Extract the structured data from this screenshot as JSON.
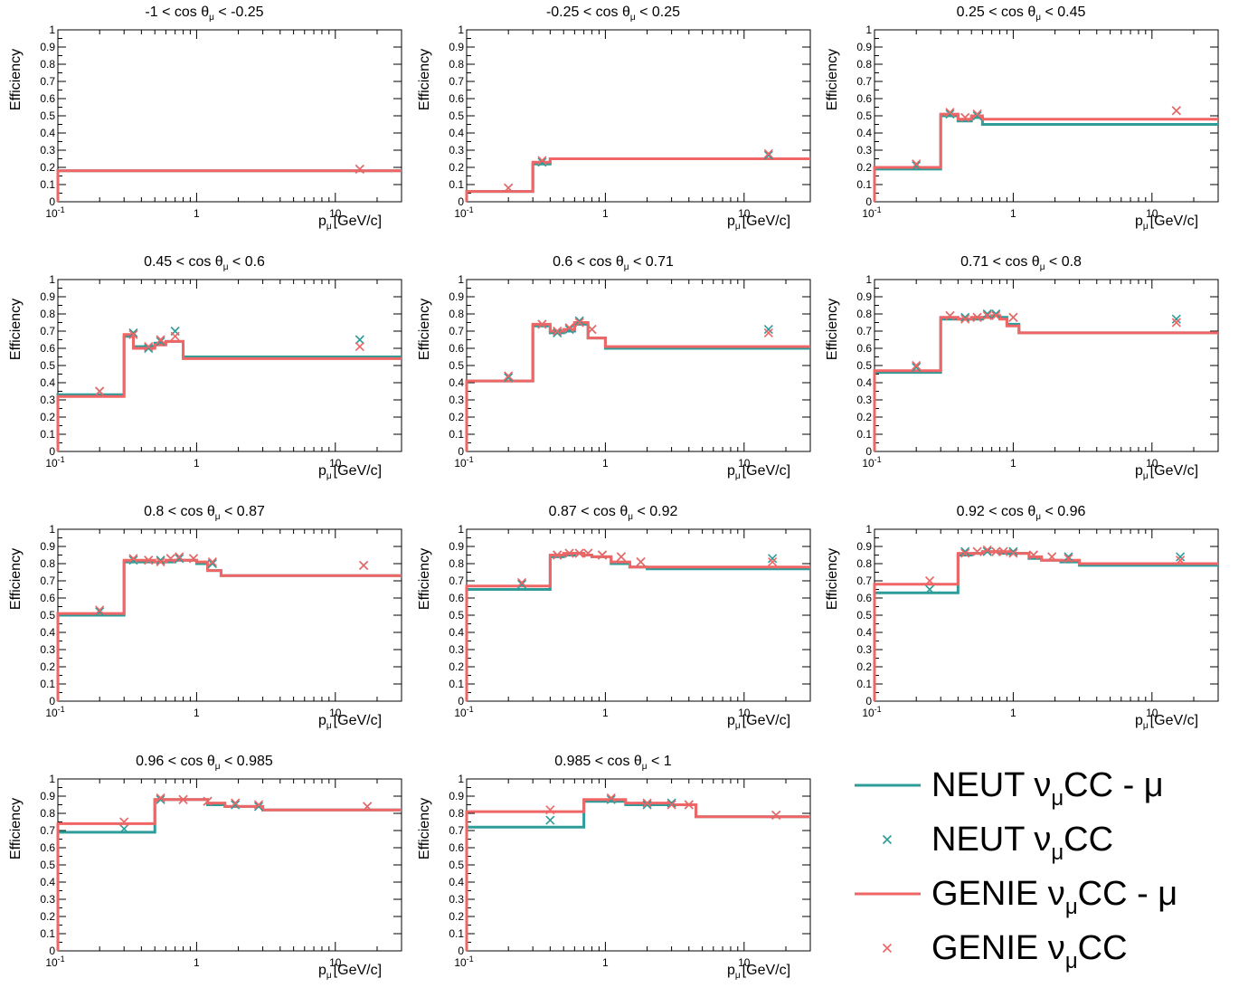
{
  "colors": {
    "neut": "#2e9c99",
    "genie": "#f06565"
  },
  "axis": {
    "ylabel": "Efficiency",
    "xlabel_main": "p",
    "xlabel_sub": "μ",
    "xlabel_unit": "[GeV/c]",
    "ytick_labels": [
      "0",
      "0.1",
      "0.2",
      "0.3",
      "0.4",
      "0.5",
      "0.6",
      "0.7",
      "0.8",
      "0.9",
      "1"
    ],
    "xtick_labels": [
      "10",
      "1",
      "10"
    ],
    "xtick_exp": "-1"
  },
  "legend": {
    "items": [
      {
        "main": "NEUT ν",
        "sub": "μ",
        "rest": "CC - μ",
        "style": "line",
        "color_key": "neut"
      },
      {
        "main": "NEUT ν",
        "sub": "μ",
        "rest": "CC",
        "style": "marker",
        "color_key": "neut"
      },
      {
        "main": "GENIE ν",
        "sub": "μ",
        "rest": "CC - μ",
        "style": "line",
        "color_key": "genie"
      },
      {
        "main": "GENIE ν",
        "sub": "μ",
        "rest": "CC",
        "style": "marker",
        "color_key": "genie"
      }
    ]
  },
  "chart_data": [
    {
      "type": "line",
      "title_pre": "-1 < cos θ",
      "title_sub": "μ",
      "title_post": " < -0.25",
      "xscale": "log",
      "xlim": [
        0.1,
        30
      ],
      "ylim": [
        0,
        1
      ],
      "edges": [
        0.1,
        30
      ],
      "neut_line": [
        0.18
      ],
      "genie_line": [
        0.18
      ],
      "neut_pts": [
        [
          15,
          0.19
        ]
      ],
      "genie_pts": [
        [
          15,
          0.19
        ]
      ]
    },
    {
      "type": "line",
      "title_pre": "-0.25 < cos θ",
      "title_sub": "μ",
      "title_post": " < 0.25",
      "xscale": "log",
      "xlim": [
        0.1,
        30
      ],
      "ylim": [
        0,
        1
      ],
      "edges": [
        0.1,
        0.3,
        0.4,
        30
      ],
      "neut_line": [
        0.06,
        0.22,
        0.25
      ],
      "genie_line": [
        0.06,
        0.23,
        0.25
      ],
      "neut_pts": [
        [
          0.2,
          0.08
        ],
        [
          0.35,
          0.23
        ],
        [
          15,
          0.27
        ]
      ],
      "genie_pts": [
        [
          0.2,
          0.08
        ],
        [
          0.35,
          0.24
        ],
        [
          15,
          0.28
        ]
      ]
    },
    {
      "type": "line",
      "title_pre": "0.25 < cos θ",
      "title_sub": "μ",
      "title_post": " < 0.45",
      "xscale": "log",
      "xlim": [
        0.1,
        30
      ],
      "ylim": [
        0,
        1
      ],
      "edges": [
        0.1,
        0.3,
        0.4,
        0.5,
        0.6,
        30
      ],
      "neut_line": [
        0.19,
        0.5,
        0.47,
        0.49,
        0.45
      ],
      "genie_line": [
        0.2,
        0.51,
        0.48,
        0.5,
        0.48
      ],
      "neut_pts": [
        [
          0.2,
          0.21
        ],
        [
          0.35,
          0.51
        ],
        [
          0.45,
          0.49
        ],
        [
          0.55,
          0.5
        ],
        [
          15,
          0.53
        ]
      ],
      "genie_pts": [
        [
          0.2,
          0.22
        ],
        [
          0.35,
          0.52
        ],
        [
          0.45,
          0.49
        ],
        [
          0.55,
          0.51
        ],
        [
          15,
          0.53
        ]
      ]
    },
    {
      "type": "line",
      "title_pre": "0.45 < cos θ",
      "title_sub": "μ",
      "title_post": " < 0.6",
      "xscale": "log",
      "xlim": [
        0.1,
        30
      ],
      "ylim": [
        0,
        1
      ],
      "edges": [
        0.1,
        0.3,
        0.35,
        0.45,
        0.5,
        0.6,
        0.8,
        30
      ],
      "neut_line": [
        0.33,
        0.67,
        0.61,
        0.61,
        0.63,
        0.64,
        0.55
      ],
      "genie_line": [
        0.32,
        0.68,
        0.6,
        0.6,
        0.62,
        0.64,
        0.54
      ],
      "neut_pts": [
        [
          0.2,
          0.35
        ],
        [
          0.35,
          0.69
        ],
        [
          0.45,
          0.6
        ],
        [
          0.55,
          0.64
        ],
        [
          0.7,
          0.7
        ],
        [
          15,
          0.65
        ]
      ],
      "genie_pts": [
        [
          0.2,
          0.35
        ],
        [
          0.35,
          0.68
        ],
        [
          0.45,
          0.61
        ],
        [
          0.55,
          0.65
        ],
        [
          0.7,
          0.67
        ],
        [
          15,
          0.61
        ]
      ]
    },
    {
      "type": "line",
      "title_pre": "0.6 < cos θ",
      "title_sub": "μ",
      "title_post": " < 0.71",
      "xscale": "log",
      "xlim": [
        0.1,
        30
      ],
      "ylim": [
        0,
        1
      ],
      "edges": [
        0.1,
        0.3,
        0.4,
        0.5,
        0.6,
        0.75,
        1,
        30
      ],
      "neut_line": [
        0.41,
        0.73,
        0.69,
        0.7,
        0.74,
        0.66,
        0.6
      ],
      "genie_line": [
        0.41,
        0.74,
        0.7,
        0.71,
        0.75,
        0.66,
        0.61
      ],
      "neut_pts": [
        [
          0.2,
          0.43
        ],
        [
          0.35,
          0.74
        ],
        [
          0.45,
          0.69
        ],
        [
          0.55,
          0.71
        ],
        [
          0.65,
          0.76
        ],
        [
          0.8,
          0.71
        ],
        [
          15,
          0.71
        ]
      ],
      "genie_pts": [
        [
          0.2,
          0.44
        ],
        [
          0.35,
          0.74
        ],
        [
          0.45,
          0.7
        ],
        [
          0.55,
          0.72
        ],
        [
          0.65,
          0.75
        ],
        [
          0.8,
          0.71
        ],
        [
          15,
          0.69
        ]
      ]
    },
    {
      "type": "line",
      "title_pre": "0.71 < cos θ",
      "title_sub": "μ",
      "title_post": " < 0.8",
      "xscale": "log",
      "xlim": [
        0.1,
        30
      ],
      "ylim": [
        0,
        1
      ],
      "edges": [
        0.1,
        0.3,
        0.4,
        0.5,
        0.6,
        0.7,
        0.8,
        0.9,
        1.1,
        30
      ],
      "neut_line": [
        0.46,
        0.77,
        0.77,
        0.77,
        0.78,
        0.79,
        0.78,
        0.74,
        0.69
      ],
      "genie_line": [
        0.47,
        0.78,
        0.77,
        0.78,
        0.78,
        0.79,
        0.77,
        0.73,
        0.69
      ],
      "neut_pts": [
        [
          0.2,
          0.49
        ],
        [
          0.35,
          0.79
        ],
        [
          0.45,
          0.78
        ],
        [
          0.55,
          0.78
        ],
        [
          0.65,
          0.8
        ],
        [
          0.75,
          0.8
        ],
        [
          1.0,
          0.78
        ],
        [
          15,
          0.77
        ]
      ],
      "genie_pts": [
        [
          0.2,
          0.5
        ],
        [
          0.35,
          0.79
        ],
        [
          0.45,
          0.77
        ],
        [
          0.55,
          0.78
        ],
        [
          0.65,
          0.79
        ],
        [
          0.75,
          0.79
        ],
        [
          1.0,
          0.78
        ],
        [
          15,
          0.75
        ]
      ]
    },
    {
      "type": "line",
      "title_pre": "0.8 < cos θ",
      "title_sub": "μ",
      "title_post": " < 0.87",
      "xscale": "log",
      "xlim": [
        0.1,
        30
      ],
      "ylim": [
        0,
        1
      ],
      "edges": [
        0.1,
        0.3,
        0.4,
        0.5,
        0.6,
        0.7,
        0.8,
        1.0,
        1.2,
        1.5,
        30
      ],
      "neut_line": [
        0.5,
        0.81,
        0.81,
        0.81,
        0.81,
        0.82,
        0.82,
        0.8,
        0.76,
        0.73
      ],
      "genie_line": [
        0.51,
        0.82,
        0.82,
        0.81,
        0.82,
        0.82,
        0.82,
        0.81,
        0.76,
        0.73
      ],
      "neut_pts": [
        [
          0.2,
          0.52
        ],
        [
          0.35,
          0.82
        ],
        [
          0.45,
          0.82
        ],
        [
          0.55,
          0.82
        ],
        [
          0.65,
          0.83
        ],
        [
          0.75,
          0.83
        ],
        [
          0.95,
          0.83
        ],
        [
          1.3,
          0.8
        ],
        [
          16,
          0.79
        ]
      ],
      "genie_pts": [
        [
          0.2,
          0.53
        ],
        [
          0.35,
          0.83
        ],
        [
          0.45,
          0.82
        ],
        [
          0.55,
          0.81
        ],
        [
          0.65,
          0.83
        ],
        [
          0.75,
          0.84
        ],
        [
          0.95,
          0.83
        ],
        [
          1.3,
          0.81
        ],
        [
          16,
          0.79
        ]
      ]
    },
    {
      "type": "line",
      "title_pre": "0.87 < cos θ",
      "title_sub": "μ",
      "title_post": " < 0.92",
      "xscale": "log",
      "xlim": [
        0.1,
        30
      ],
      "ylim": [
        0,
        1
      ],
      "edges": [
        0.1,
        0.4,
        0.5,
        0.6,
        0.7,
        0.8,
        1.1,
        1.5,
        2,
        30
      ],
      "neut_line": [
        0.65,
        0.84,
        0.85,
        0.86,
        0.85,
        0.84,
        0.8,
        0.78,
        0.77
      ],
      "genie_line": [
        0.67,
        0.85,
        0.86,
        0.86,
        0.85,
        0.84,
        0.81,
        0.78,
        0.78
      ],
      "neut_pts": [
        [
          0.25,
          0.68
        ],
        [
          0.45,
          0.85
        ],
        [
          0.55,
          0.86
        ],
        [
          0.65,
          0.86
        ],
        [
          0.75,
          0.86
        ],
        [
          0.95,
          0.85
        ],
        [
          1.3,
          0.84
        ],
        [
          1.8,
          0.81
        ],
        [
          16,
          0.83
        ]
      ],
      "genie_pts": [
        [
          0.25,
          0.69
        ],
        [
          0.45,
          0.85
        ],
        [
          0.55,
          0.86
        ],
        [
          0.65,
          0.86
        ],
        [
          0.75,
          0.86
        ],
        [
          0.95,
          0.85
        ],
        [
          1.3,
          0.84
        ],
        [
          1.8,
          0.81
        ],
        [
          16,
          0.81
        ]
      ]
    },
    {
      "type": "line",
      "title_pre": "0.92 < cos θ",
      "title_sub": "μ",
      "title_post": " < 0.96",
      "xscale": "log",
      "xlim": [
        0.1,
        30
      ],
      "ylim": [
        0,
        1
      ],
      "edges": [
        0.1,
        0.4,
        0.5,
        0.6,
        0.7,
        0.8,
        1.0,
        1.3,
        1.6,
        2.2,
        3,
        30
      ],
      "neut_line": [
        0.63,
        0.85,
        0.86,
        0.87,
        0.87,
        0.86,
        0.86,
        0.83,
        0.82,
        0.81,
        0.79
      ],
      "genie_line": [
        0.68,
        0.86,
        0.86,
        0.87,
        0.87,
        0.87,
        0.86,
        0.84,
        0.82,
        0.82,
        0.8
      ],
      "neut_pts": [
        [
          0.25,
          0.65
        ],
        [
          0.45,
          0.87
        ],
        [
          0.55,
          0.87
        ],
        [
          0.65,
          0.87
        ],
        [
          0.75,
          0.87
        ],
        [
          0.85,
          0.87
        ],
        [
          1.0,
          0.87
        ],
        [
          1.4,
          0.85
        ],
        [
          1.9,
          0.84
        ],
        [
          2.5,
          0.84
        ],
        [
          16,
          0.84
        ]
      ],
      "genie_pts": [
        [
          0.25,
          0.7
        ],
        [
          0.45,
          0.86
        ],
        [
          0.55,
          0.87
        ],
        [
          0.65,
          0.88
        ],
        [
          0.75,
          0.87
        ],
        [
          0.85,
          0.87
        ],
        [
          1.0,
          0.86
        ],
        [
          1.4,
          0.85
        ],
        [
          1.9,
          0.84
        ],
        [
          2.5,
          0.83
        ],
        [
          16,
          0.82
        ]
      ]
    },
    {
      "type": "line",
      "title_pre": "0.96 < cos θ",
      "title_sub": "μ",
      "title_post": " < 0.985",
      "xscale": "log",
      "xlim": [
        0.1,
        30
      ],
      "ylim": [
        0,
        1
      ],
      "edges": [
        0.1,
        0.5,
        0.6,
        1.2,
        1.6,
        3,
        30
      ],
      "neut_line": [
        0.69,
        0.88,
        0.88,
        0.85,
        0.84,
        0.82
      ],
      "genie_line": [
        0.74,
        0.88,
        0.88,
        0.86,
        0.84,
        0.82
      ],
      "neut_pts": [
        [
          0.3,
          0.71
        ],
        [
          0.55,
          0.88
        ],
        [
          0.8,
          0.88
        ],
        [
          1.2,
          0.87
        ],
        [
          1.9,
          0.85
        ],
        [
          2.8,
          0.84
        ],
        [
          17,
          0.84
        ]
      ],
      "genie_pts": [
        [
          0.3,
          0.75
        ],
        [
          0.55,
          0.89
        ],
        [
          0.8,
          0.88
        ],
        [
          1.2,
          0.87
        ],
        [
          1.9,
          0.86
        ],
        [
          2.8,
          0.85
        ],
        [
          17,
          0.84
        ]
      ]
    },
    {
      "type": "line",
      "title_pre": "0.985 < cos θ",
      "title_sub": "μ",
      "title_post": " < 1",
      "xscale": "log",
      "xlim": [
        0.1,
        30
      ],
      "ylim": [
        0,
        1
      ],
      "edges": [
        0.1,
        0.7,
        1.4,
        3,
        4.5,
        30
      ],
      "neut_line": [
        0.72,
        0.87,
        0.85,
        0.85,
        0.78
      ],
      "genie_line": [
        0.81,
        0.88,
        0.86,
        0.85,
        0.78
      ],
      "neut_pts": [
        [
          0.4,
          0.76
        ],
        [
          1.1,
          0.88
        ],
        [
          2,
          0.85
        ],
        [
          3,
          0.86
        ],
        [
          4,
          0.85
        ],
        [
          17,
          0.79
        ]
      ],
      "genie_pts": [
        [
          0.4,
          0.82
        ],
        [
          1.1,
          0.89
        ],
        [
          2,
          0.86
        ],
        [
          3,
          0.85
        ],
        [
          4,
          0.85
        ],
        [
          17,
          0.79
        ]
      ]
    }
  ]
}
